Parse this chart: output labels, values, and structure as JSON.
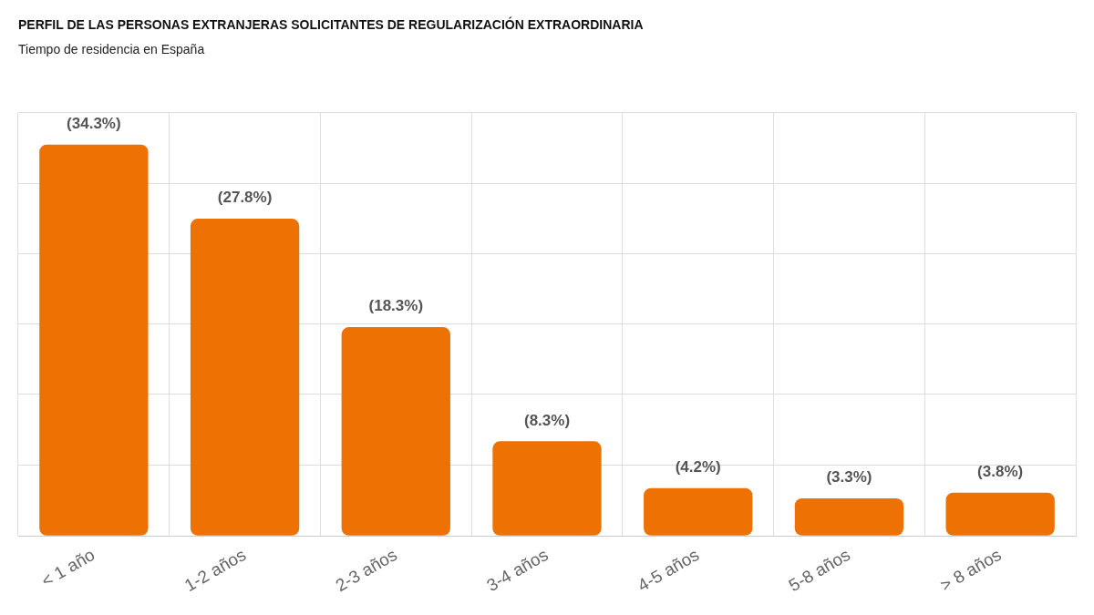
{
  "chart_data": {
    "type": "bar",
    "title": "PERFIL DE LAS PERSONAS EXTRANJERAS SOLICITANTES DE REGULARIZACIÓN EXTRAORDINARIA",
    "subtitle": "Tiempo de residencia en España",
    "categories": [
      "< 1 año",
      "1-2 años",
      "2-3 años",
      "3-4 años",
      "4-5 años",
      "5-8 años",
      "> 8 años"
    ],
    "values": [
      34.3,
      27.8,
      18.3,
      8.3,
      4.2,
      3.3,
      3.8
    ],
    "value_labels": [
      "(34.3%)",
      "(27.8%)",
      "(18.3%)",
      "(8.3%)",
      "(4.2%)",
      "(3.3%)",
      "(3.8%)"
    ],
    "color": "#ee7203",
    "ylim": [
      0,
      37.1
    ],
    "yticks": [
      {
        "value": 0,
        "label": null
      },
      {
        "value": 6.2,
        "label": null
      },
      {
        "value": 12.4,
        "label": null
      },
      {
        "value": 18.6,
        "label": null
      },
      {
        "value": 24.7,
        "label": null
      },
      {
        "value": 30.9,
        "label": null
      },
      {
        "value": 37.1,
        "label": null
      }
    ],
    "grid": true,
    "tick_labels": "x",
    "legend": false
  }
}
